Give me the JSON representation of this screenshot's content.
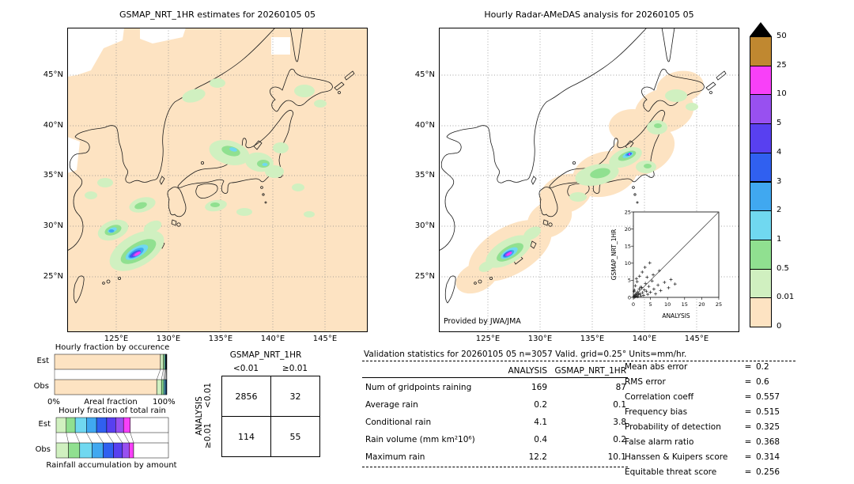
{
  "colorbar": {
    "levels": [
      "50",
      "25",
      "10",
      "5",
      "4",
      "3",
      "2",
      "1",
      "0.5",
      "0.01",
      "0"
    ],
    "colors": [
      "#c08830",
      "#f840f8",
      "#9850f0",
      "#5840f0",
      "#3060f0",
      "#40a8f0",
      "#70d8f0",
      "#90e090",
      "#d0f0c0",
      "#fde3c2"
    ],
    "over_color": "#000000",
    "units": "mm/hr"
  },
  "glyphs": {
    "eq": "="
  },
  "chart_data": [
    {
      "id": "gsmap_map",
      "type": "heatmap",
      "title": "GSMAP_NRT_1HR estimates for 20260105 05",
      "lat_ticks": [
        "45°N",
        "40°N",
        "35°N",
        "30°N",
        "25°N"
      ],
      "lon_ticks": [
        "125°E",
        "130°E",
        "135°E",
        "140°E",
        "145°E"
      ],
      "units": "mm/hr",
      "colorscale_levels": [
        0,
        0.01,
        0.5,
        1,
        2,
        3,
        4,
        5,
        10,
        25,
        50
      ]
    },
    {
      "id": "radar_map",
      "type": "heatmap",
      "title": "Hourly Radar-AMeDAS analysis for 20260105 05",
      "credit": "Provided by JWA/JMA",
      "lat_ticks": [
        "45°N",
        "40°N",
        "35°N",
        "30°N",
        "25°N"
      ],
      "lon_ticks": [
        "125°E",
        "130°E",
        "135°E",
        "140°E",
        "145°E"
      ],
      "units": "mm/hr",
      "colorscale_levels": [
        0,
        0.01,
        0.5,
        1,
        2,
        3,
        4,
        5,
        10,
        25,
        50
      ]
    },
    {
      "id": "inset_scatter",
      "type": "scatter",
      "xlabel": "ANALYSIS",
      "ylabel": "GSMAP_NRT_1HR",
      "xlim": [
        0,
        25
      ],
      "ylim": [
        0,
        25
      ],
      "xticks": [
        0,
        5,
        10,
        15,
        20,
        25
      ],
      "yticks": [
        0,
        5,
        10,
        15,
        20,
        25
      ],
      "diagonal": true,
      "points": [
        [
          0.1,
          0.1
        ],
        [
          0.2,
          0.3
        ],
        [
          0.3,
          0.1
        ],
        [
          0.4,
          0.5
        ],
        [
          0.5,
          0.2
        ],
        [
          0.6,
          0.8
        ],
        [
          0.7,
          0.3
        ],
        [
          0.8,
          1.2
        ],
        [
          1.0,
          0.5
        ],
        [
          1.2,
          0.2
        ],
        [
          1.3,
          1.6
        ],
        [
          1.5,
          0.8
        ],
        [
          1.7,
          2.4
        ],
        [
          2.0,
          1.0
        ],
        [
          2.2,
          0.4
        ],
        [
          2.4,
          2.9
        ],
        [
          2.7,
          1.4
        ],
        [
          3.0,
          0.6
        ],
        [
          3.2,
          2.2
        ],
        [
          3.5,
          4.1
        ],
        [
          3.8,
          1.8
        ],
        [
          4.2,
          0.9
        ],
        [
          4.5,
          3.2
        ],
        [
          5.0,
          1.5
        ],
        [
          5.5,
          4.8
        ],
        [
          6.0,
          2.4
        ],
        [
          6.5,
          1.0
        ],
        [
          7.2,
          3.6
        ],
        [
          8.0,
          2.0
        ],
        [
          9.1,
          4.4
        ],
        [
          10.3,
          2.8
        ],
        [
          11.0,
          5.2
        ],
        [
          12.2,
          3.9
        ],
        [
          0.3,
          2.1
        ],
        [
          0.6,
          3.4
        ],
        [
          1.1,
          4.6
        ],
        [
          1.8,
          6.2
        ],
        [
          2.6,
          7.4
        ],
        [
          3.4,
          8.8
        ],
        [
          4.8,
          10.1
        ],
        [
          0.9,
          5.5
        ],
        [
          2.1,
          3.0
        ],
        [
          5.8,
          6.6
        ],
        [
          7.6,
          7.8
        ],
        [
          1.4,
          1.1
        ],
        [
          0.2,
          1.8
        ],
        [
          4.0,
          5.9
        ]
      ]
    },
    {
      "id": "occurrence",
      "type": "bar",
      "orientation": "horizontal",
      "stacked": true,
      "title": "Hourly fraction by occurence",
      "categories": [
        "Est",
        "Obs"
      ],
      "xlabel": "Areal fraction",
      "xmin_label": "0%",
      "xmax_label": "100%",
      "series": [
        {
          "name": "0-0.01",
          "color": "#fde3c2",
          "values": [
            94.3,
            91.0
          ]
        },
        {
          "name": "0.01-0.5",
          "color": "#d0f0c0",
          "values": [
            2.6,
            4.2
          ]
        },
        {
          "name": "0.5-1",
          "color": "#90e090",
          "values": [
            1.2,
            2.0
          ]
        },
        {
          "name": "1-2",
          "color": "#70d8f0",
          "values": [
            0.8,
            1.2
          ]
        },
        {
          "name": "2-3",
          "color": "#40a8f0",
          "values": [
            0.5,
            0.8
          ]
        },
        {
          "name": "3-4",
          "color": "#3060f0",
          "values": [
            0.3,
            0.5
          ]
        },
        {
          "name": "4-5",
          "color": "#5840f0",
          "values": [
            0.3,
            0.3
          ]
        }
      ]
    },
    {
      "id": "totalrain",
      "type": "bar",
      "orientation": "horizontal",
      "stacked": true,
      "title": "Hourly fraction of total rain",
      "categories": [
        "Est",
        "Obs"
      ],
      "xlabel": "Rainfall accumulation by amount",
      "series": [
        {
          "name": "0.01-0.5",
          "color": "#d0f0c0",
          "values": [
            9,
            11
          ]
        },
        {
          "name": "0.5-1",
          "color": "#90e090",
          "values": [
            8,
            10
          ]
        },
        {
          "name": "1-2",
          "color": "#70d8f0",
          "values": [
            10,
            11
          ]
        },
        {
          "name": "2-3",
          "color": "#40a8f0",
          "values": [
            9,
            10
          ]
        },
        {
          "name": "3-4",
          "color": "#3060f0",
          "values": [
            9,
            9
          ]
        },
        {
          "name": "4-5",
          "color": "#5840f0",
          "values": [
            8,
            8
          ]
        },
        {
          "name": "5-10",
          "color": "#9850f0",
          "values": [
            7,
            6
          ]
        },
        {
          "name": "10-25",
          "color": "#f840f8",
          "values": [
            6,
            4
          ]
        },
        {
          "name": "remainder",
          "color": "#ffffff",
          "values": [
            34,
            31
          ]
        }
      ]
    },
    {
      "id": "contingency",
      "type": "table",
      "col_group": "GSMAP_NRT_1HR",
      "row_group": "ANALYSIS",
      "col_labels": [
        "<0.01",
        "≥0.01"
      ],
      "row_labels": [
        "<0.01",
        "≥0.01"
      ],
      "values": [
        [
          "2856",
          "32"
        ],
        [
          "114",
          "55"
        ]
      ]
    },
    {
      "id": "validation",
      "type": "table",
      "title": "Validation statistics for 20260105 05  n=3057 Valid. grid=0.25° Units=mm/hr.",
      "col_headers": [
        "ANALYSIS",
        "GSMAP_NRT_1HR"
      ],
      "rows": [
        [
          "Num of gridpoints raining",
          "169",
          "87"
        ],
        [
          "Average rain",
          "0.2",
          "0.1"
        ],
        [
          "Conditional rain",
          "4.1",
          "3.8"
        ],
        [
          "Rain volume (mm km²10⁶)",
          "0.4",
          "0.2"
        ],
        [
          "Maximum rain",
          "12.2",
          "10.1"
        ]
      ],
      "metrics": [
        [
          "Mean abs error",
          "0.2"
        ],
        [
          "RMS error",
          "0.6"
        ],
        [
          "Correlation coeff",
          "0.557"
        ],
        [
          "Frequency bias",
          "0.515"
        ],
        [
          "Probability of detection",
          "0.325"
        ],
        [
          "False alarm ratio",
          "0.368"
        ],
        [
          "Hanssen & Kuipers score",
          "0.314"
        ],
        [
          "Equitable threat score",
          "0.256"
        ]
      ]
    }
  ]
}
